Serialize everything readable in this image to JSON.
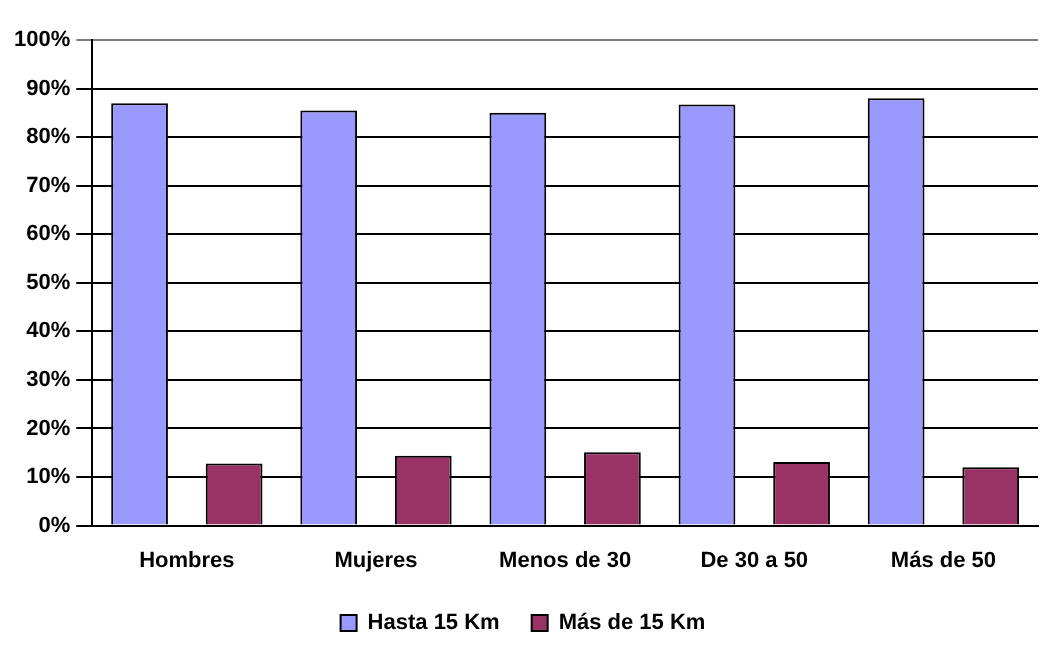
{
  "chart_data": {
    "type": "bar",
    "categories": [
      "Hombres",
      "Mujeres",
      "Menos de 30",
      "De 30 a 50",
      "Más de 50"
    ],
    "series": [
      {
        "name": "Hasta 15 Km",
        "color": "#9999ff",
        "values": [
          87,
          85.5,
          85,
          86.7,
          88
        ]
      },
      {
        "name": "Más de 15 Km",
        "color": "#993366",
        "values": [
          12.8,
          14.4,
          15.1,
          13.1,
          12
        ]
      }
    ],
    "ylim": [
      0,
      100
    ],
    "yticks": [
      {
        "value": 0,
        "label": "0%"
      },
      {
        "value": 10,
        "label": "10%"
      },
      {
        "value": 20,
        "label": "20%"
      },
      {
        "value": 30,
        "label": "30%"
      },
      {
        "value": 40,
        "label": "40%"
      },
      {
        "value": 50,
        "label": "50%"
      },
      {
        "value": 60,
        "label": "60%"
      },
      {
        "value": 70,
        "label": "70%"
      },
      {
        "value": 80,
        "label": "80%"
      },
      {
        "value": 90,
        "label": "90%"
      },
      {
        "value": 100,
        "label": "100%"
      }
    ],
    "grid": "y",
    "legend": "bottom"
  }
}
